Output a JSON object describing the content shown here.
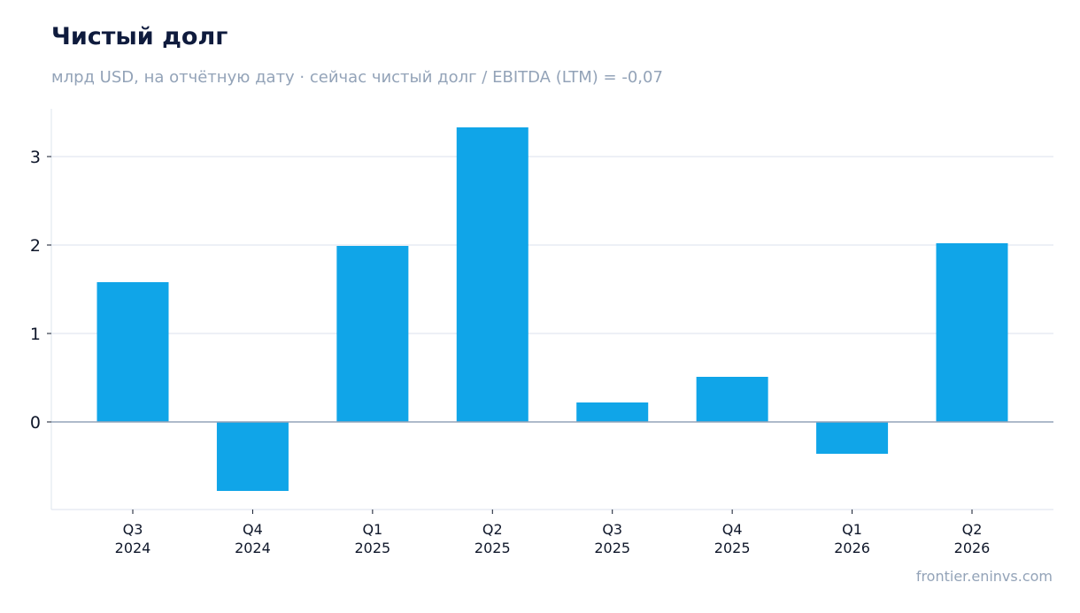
{
  "title": "Чистый долг",
  "subtitle": "млрд USD, на отчётную дату · сейчас чистый долг / EBITDA (LTM) = -0,07",
  "source": "frontier.eninvs.com",
  "colors": {
    "bar": "#10a5e8",
    "grid": "#e2e8f0",
    "zero_line": "#94a3b8",
    "title": "#0f1b3d",
    "muted": "#93a3b8"
  },
  "chart_data": {
    "type": "bar",
    "categories": [
      [
        "Q3",
        "2024"
      ],
      [
        "Q4",
        "2024"
      ],
      [
        "Q1",
        "2025"
      ],
      [
        "Q2",
        "2025"
      ],
      [
        "Q3",
        "2025"
      ],
      [
        "Q4",
        "2025"
      ],
      [
        "Q1",
        "2026"
      ],
      [
        "Q2",
        "2026"
      ]
    ],
    "values": [
      1.58,
      -0.78,
      1.99,
      3.33,
      0.22,
      0.51,
      -0.36,
      2.02
    ],
    "yticks": [
      0,
      1,
      2,
      3
    ],
    "ylim": [
      -0.99,
      3.54
    ],
    "grid": true,
    "legend": "none"
  }
}
